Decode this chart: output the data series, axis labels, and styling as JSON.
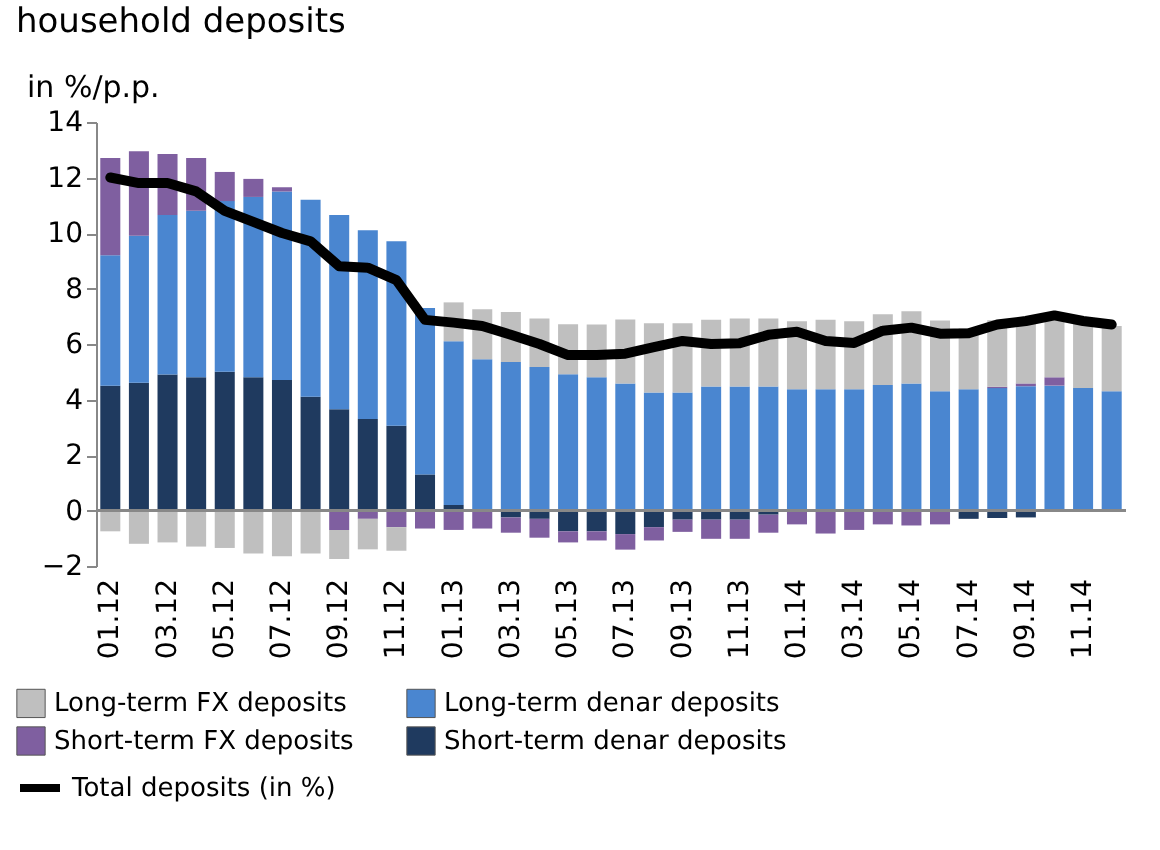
{
  "chart_data": {
    "type": "bar",
    "title": "household deposits",
    "ylabel": "in %/p.p.",
    "stacked": true,
    "legend": "bottom",
    "grid": false,
    "categories": [
      "01.12",
      null,
      "03.12",
      null,
      "05.12",
      null,
      "07.12",
      null,
      "09.12",
      null,
      "11.12",
      null,
      "01.13",
      null,
      "03.13",
      null,
      "05.13",
      null,
      "07.13",
      null,
      "09.13",
      null,
      "11.13",
      null,
      "01.14",
      null,
      "03.14",
      null,
      "05.14",
      null,
      "07.14",
      null,
      "09.14",
      null,
      "11.14",
      null
    ],
    "ylim": [
      -2,
      14
    ],
    "yticks": [
      -2,
      0,
      2,
      4,
      6,
      8,
      10,
      12,
      14
    ],
    "series": [
      {
        "name": "Short-term denar deposits",
        "color": "#1f3a5f",
        "values": [
          4.5,
          4.6,
          4.9,
          4.8,
          5.0,
          4.8,
          4.7,
          4.1,
          3.65,
          3.3,
          3.05,
          1.3,
          0.2,
          0,
          -0.25,
          -0.3,
          -0.75,
          -0.75,
          -0.85,
          -0.6,
          -0.33,
          -0.33,
          -0.33,
          -0.15,
          null,
          null,
          null,
          null,
          null,
          null,
          -0.3,
          -0.27,
          -0.25,
          -0.05,
          -0.05,
          0
        ]
      },
      {
        "name": "Long-term denar deposits",
        "color": "#4a86d0",
        "values": [
          4.7,
          5.3,
          5.75,
          6.0,
          6.15,
          6.5,
          6.8,
          7.1,
          7.0,
          6.8,
          6.65,
          6.0,
          5.9,
          5.45,
          5.35,
          5.17,
          4.91,
          4.8,
          4.58,
          4.25,
          4.25,
          4.47,
          4.47,
          4.47,
          4.37,
          4.37,
          4.37,
          4.52,
          4.58,
          4.3,
          4.37,
          4.41,
          4.48,
          4.5,
          4.41,
          4.3
        ]
      },
      {
        "name": "Short-term FX deposits",
        "color": "#7f5fa0",
        "values": [
          3.5,
          3.05,
          2.2,
          1.9,
          1.05,
          0.65,
          0.15,
          0,
          -0.7,
          -0.3,
          -0.6,
          -0.65,
          -0.7,
          -0.65,
          -0.55,
          -0.68,
          -0.4,
          -0.33,
          -0.56,
          -0.48,
          -0.44,
          -0.69,
          -0.69,
          -0.65,
          -0.5,
          -0.83,
          -0.7,
          -0.5,
          -0.54,
          -0.5,
          0,
          0.05,
          0.1,
          0.3,
          0,
          0
        ]
      },
      {
        "name": "Long-term FX deposits",
        "color": "#bfbfbf",
        "values": [
          -0.75,
          -1.2,
          -1.15,
          -1.3,
          -1.35,
          -1.55,
          -1.65,
          -1.55,
          -1.05,
          -1.1,
          -0.85,
          null,
          1.4,
          1.8,
          1.8,
          1.75,
          1.8,
          1.9,
          2.3,
          2.5,
          2.5,
          2.4,
          2.45,
          2.45,
          2.45,
          2.5,
          2.45,
          2.55,
          2.6,
          2.55,
          2.2,
          2.4,
          2.3,
          2.3,
          2.45,
          2.35
        ]
      },
      {
        "name": "Total deposits (in %)",
        "type": "line",
        "marker": "none",
        "line_style": "solid",
        "color": "#000000",
        "values": [
          12.0,
          11.8,
          11.8,
          11.5,
          10.8,
          10.4,
          10.0,
          9.7,
          8.8,
          8.75,
          8.3,
          6.87,
          6.77,
          6.65,
          6.33,
          6.0,
          5.6,
          5.6,
          5.65,
          5.89,
          6.11,
          6.0,
          6.03,
          6.33,
          6.44,
          6.11,
          6.04,
          6.48,
          6.59,
          6.37,
          6.39,
          6.7,
          6.83,
          7.03,
          6.83,
          6.7
        ]
      }
    ]
  }
}
